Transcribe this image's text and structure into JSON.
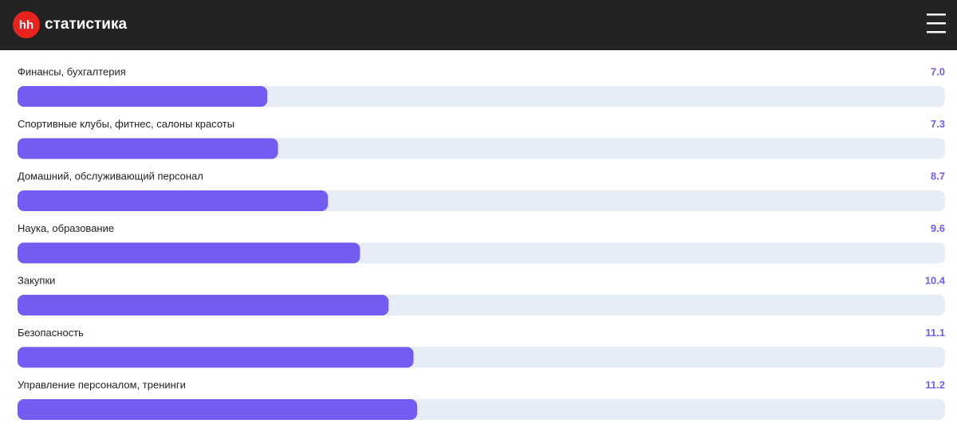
{
  "header": {
    "logo": "hh",
    "title": "статистика"
  },
  "chart_data": {
    "type": "bar",
    "categories": [
      "Финансы, бухгалтерия",
      "Спортивные клубы, фитнес, салоны красоты",
      "Домашний, обслуживающий персонал",
      "Наука, образование",
      "Закупки",
      "Безопасность",
      "Управление персоналом, тренинги"
    ],
    "values": [
      7.0,
      7.3,
      8.7,
      9.6,
      10.4,
      11.1,
      11.2
    ],
    "value_labels": [
      "7.0",
      "7.3",
      "8.7",
      "9.6",
      "10.4",
      "11.1",
      "11.2"
    ],
    "xlim": [
      0,
      26
    ],
    "color": "#735cf2"
  }
}
